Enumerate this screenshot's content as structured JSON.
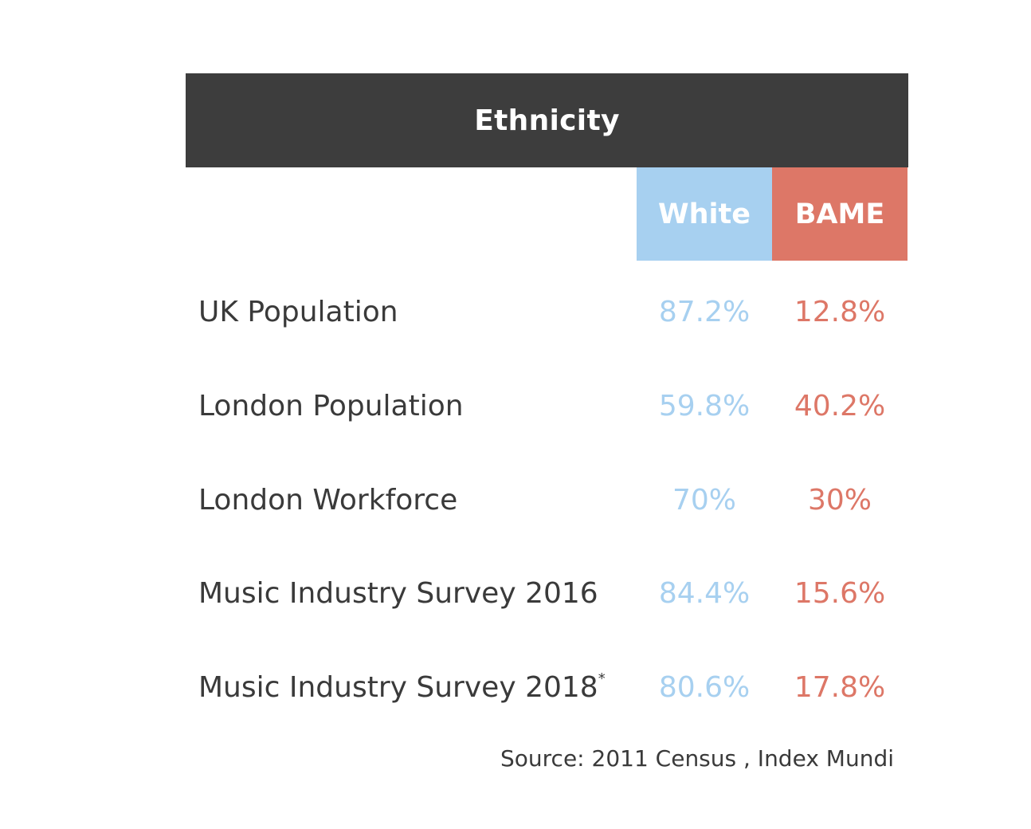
{
  "chart_data": {
    "type": "table",
    "title": "Ethnicity",
    "columns": [
      "White",
      "BAME"
    ],
    "colors": {
      "White": "#a7d0f0",
      "BAME": "#dd7767",
      "header": "#3d3d3d"
    },
    "rows": [
      {
        "label": "UK Population",
        "marker": "",
        "White": "87.2%",
        "BAME": "12.8%"
      },
      {
        "label": "London Population",
        "marker": "",
        "White": "59.8%",
        "BAME": "40.2%"
      },
      {
        "label": "London Workforce",
        "marker": "",
        "White": "70%",
        "BAME": "30%"
      },
      {
        "label": "Music Industry Survey 2016",
        "marker": "",
        "White": "84.4%",
        "BAME": "15.6%"
      },
      {
        "label": "Music Industry Survey 2018",
        "marker": "*",
        "White": "80.6%",
        "BAME": "17.8%"
      }
    ],
    "source": "Source: 2011 Census , Index Mundi"
  }
}
